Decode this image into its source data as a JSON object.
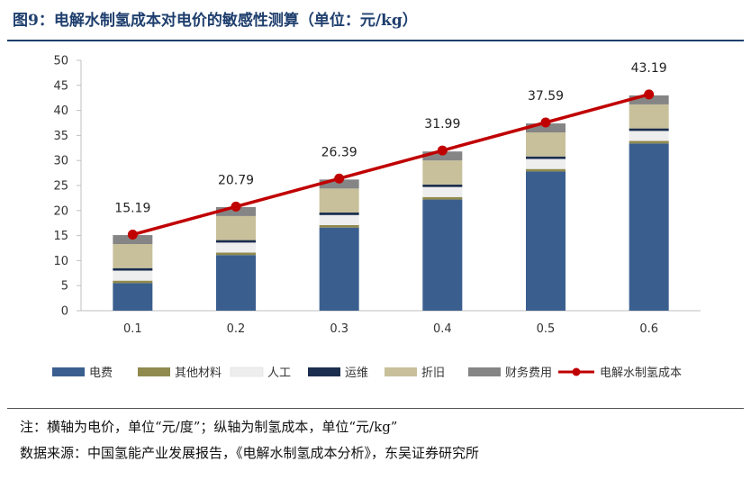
{
  "figure": {
    "title": "图9：电解水制氢成本对电价的敏感性测算（单位：元/kg）",
    "note": "注：横轴为电价，单位“元/度”；纵轴为制氢成本，单位“元/kg”",
    "source": "数据来源：中国氢能产业发展报告，《电解水制氢成本分析》，东吴证券研究所"
  },
  "chart_data": {
    "type": "bar",
    "stacked": true,
    "categories": [
      "0.1",
      "0.2",
      "0.3",
      "0.4",
      "0.5",
      "0.6"
    ],
    "series": [
      {
        "name": "电费",
        "kind": "bar",
        "color": "#3a5f8f",
        "values": [
          5.5,
          11.1,
          16.6,
          22.2,
          27.8,
          33.4
        ]
      },
      {
        "name": "其他材料",
        "kind": "bar",
        "color": "#8f8a4e",
        "values": [
          0.5,
          0.5,
          0.5,
          0.5,
          0.5,
          0.5
        ]
      },
      {
        "name": "人工",
        "kind": "bar",
        "color": "#eeeeee",
        "values": [
          2.0,
          2.0,
          2.0,
          2.0,
          2.0,
          2.0
        ]
      },
      {
        "name": "运维",
        "kind": "bar",
        "color": "#1b2e4e",
        "values": [
          0.5,
          0.5,
          0.5,
          0.5,
          0.5,
          0.5
        ]
      },
      {
        "name": "折旧",
        "kind": "bar",
        "color": "#c8c09a",
        "values": [
          4.8,
          4.8,
          4.8,
          4.8,
          4.8,
          4.8
        ]
      },
      {
        "name": "财务费用",
        "kind": "bar",
        "color": "#858585",
        "values": [
          1.8,
          1.8,
          1.8,
          1.8,
          1.8,
          1.8
        ]
      },
      {
        "name": "电解水制氢成本",
        "kind": "line",
        "color": "#c00000",
        "values": [
          15.19,
          20.79,
          26.39,
          31.99,
          37.59,
          43.19
        ]
      }
    ],
    "data_labels": [
      "15.19",
      "20.79",
      "26.39",
      "31.99",
      "37.59",
      "43.19"
    ],
    "y_ticks": [
      "0",
      "5",
      "10",
      "15",
      "20",
      "25",
      "30",
      "35",
      "40",
      "45",
      "50"
    ],
    "ylim": [
      0,
      50
    ],
    "xlabel": "",
    "ylabel": "",
    "grid": false,
    "legend_position": "bottom"
  }
}
